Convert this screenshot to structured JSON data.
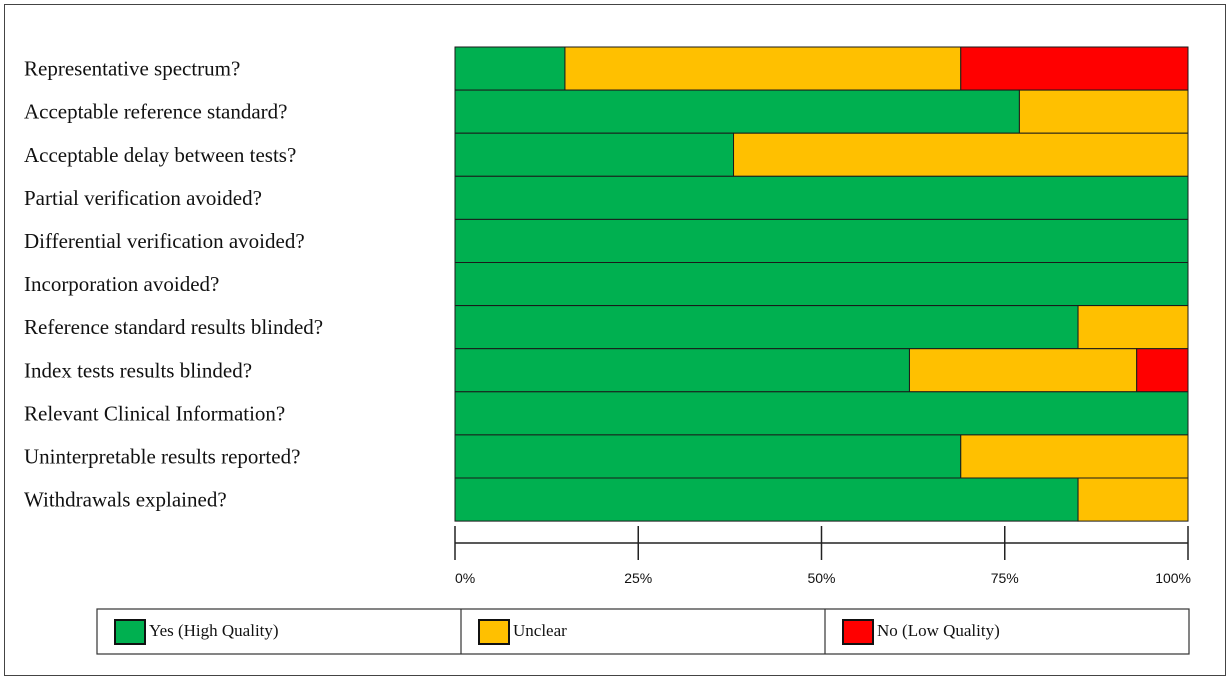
{
  "chart_data": {
    "type": "bar",
    "orientation": "horizontal",
    "stacked": true,
    "percent": true,
    "categories": [
      "Representative spectrum?",
      "Acceptable reference standard?",
      "Acceptable delay between tests?",
      "Partial verification avoided?",
      "Differential verification avoided?",
      "Incorporation avoided?",
      "Reference standard results blinded?",
      "Index tests results blinded?",
      "Relevant Clinical Information?",
      "Uninterpretable results reported?",
      "Withdrawals explained?"
    ],
    "series": [
      {
        "name": "Yes (High Quality)",
        "color": "#00b050",
        "values": [
          15,
          77,
          38,
          100,
          100,
          100,
          85,
          62,
          100,
          69,
          85
        ]
      },
      {
        "name": "Unclear",
        "color": "#ffc000",
        "values": [
          54,
          23,
          62,
          0,
          0,
          0,
          15,
          31,
          0,
          31,
          15
        ]
      },
      {
        "name": "No (Low Quality)",
        "color": "#ff0000",
        "values": [
          31,
          0,
          0,
          0,
          0,
          0,
          0,
          7,
          0,
          0,
          0
        ]
      }
    ],
    "xticks": [
      "0%",
      "25%",
      "50%",
      "75%",
      "100%"
    ],
    "xlim": [
      0,
      100
    ],
    "grid": false,
    "legend_position": "bottom"
  }
}
